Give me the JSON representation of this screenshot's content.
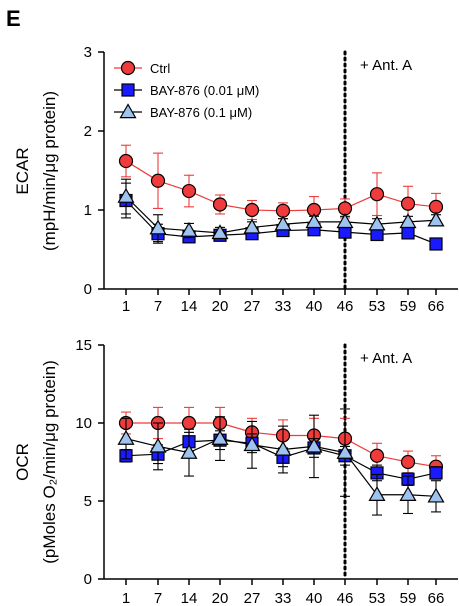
{
  "figure": {
    "panel_letter": "E"
  },
  "colors": {
    "ctrl": "#ef3b3b",
    "bay001": "#1a1aff",
    "bay01": "#9ec3ef",
    "axis": "#000000"
  },
  "chart_data": [
    {
      "type": "line",
      "xlabel": "",
      "ylabel_lines": [
        "ECAR",
        "(mpH/min/μg protein)"
      ],
      "categories": [
        "1",
        "7",
        "14",
        "20",
        "27",
        "33",
        "40",
        "46",
        "53",
        "59",
        "66"
      ],
      "ylim": [
        0,
        3
      ],
      "yticks": [
        "0",
        "1",
        "2",
        "3"
      ],
      "annotation": "+ Ant. A",
      "vline_at": "46",
      "legend": {
        "placement": "top-left"
      },
      "series": [
        {
          "name": "Ctrl",
          "marker": "circle",
          "color": "#ef3b3b",
          "values": [
            1.62,
            1.37,
            1.24,
            1.07,
            1.0,
            0.99,
            1.0,
            1.02,
            1.2,
            1.08,
            1.04
          ],
          "errors": [
            0.2,
            0.35,
            0.2,
            0.12,
            0.12,
            0.1,
            0.17,
            0.12,
            0.27,
            0.22,
            0.17
          ]
        },
        {
          "name": "BAY-876  (0.01 μM)",
          "marker": "square",
          "color": "#1a1aff",
          "values": [
            1.12,
            0.7,
            0.66,
            0.68,
            0.7,
            0.74,
            0.75,
            0.72,
            0.69,
            0.71,
            0.57
          ],
          "errors": [
            0.22,
            0.12,
            0.07,
            0.06,
            0.06,
            0.06,
            0.06,
            0.06,
            0.06,
            0.06,
            0.06
          ]
        },
        {
          "name": "BAY-876  (0.1 μM)",
          "marker": "triangle",
          "color": "#9ec3ef",
          "values": [
            1.17,
            0.77,
            0.74,
            0.71,
            0.78,
            0.82,
            0.85,
            0.85,
            0.82,
            0.85,
            0.87
          ],
          "errors": [
            0.22,
            0.17,
            0.09,
            0.07,
            0.07,
            0.07,
            0.07,
            0.07,
            0.07,
            0.07,
            0.07
          ]
        }
      ]
    },
    {
      "type": "line",
      "xlabel": "",
      "ylabel_lines": [
        "OCR",
        "(pMoles O₂/min/μg protein)"
      ],
      "categories": [
        "1",
        "7",
        "14",
        "20",
        "27",
        "33",
        "40",
        "46",
        "53",
        "59",
        "66"
      ],
      "ylim": [
        0,
        15
      ],
      "yticks": [
        "0",
        "5",
        "10",
        "15"
      ],
      "annotation": "+ Ant. A",
      "vline_at": "46",
      "series": [
        {
          "name": "Ctrl",
          "marker": "circle",
          "color": "#ef3b3b",
          "values": [
            10.0,
            10.0,
            10.0,
            10.0,
            9.4,
            9.2,
            9.2,
            9.0,
            7.9,
            7.5,
            7.2
          ],
          "errors": [
            0.7,
            1.0,
            1.0,
            1.0,
            0.9,
            1.0,
            1.1,
            1.3,
            0.8,
            0.7,
            0.7
          ]
        },
        {
          "name": "BAY-876  (0.01 μM)",
          "marker": "square",
          "color": "#1a1aff",
          "values": [
            7.9,
            8.0,
            8.8,
            8.9,
            8.7,
            7.8,
            8.4,
            7.9,
            6.8,
            6.4,
            6.8
          ],
          "errors": [
            0.4,
            0.6,
            0.6,
            0.6,
            0.6,
            0.6,
            0.6,
            0.6,
            0.5,
            0.4,
            0.4
          ]
        },
        {
          "name": "BAY-876  (0.1 μM)",
          "marker": "triangle",
          "color": "#9ec3ef",
          "values": [
            9.0,
            8.5,
            8.1,
            9.0,
            8.6,
            8.3,
            8.5,
            8.1,
            5.4,
            5.4,
            5.3
          ],
          "errors": [
            1.3,
            1.5,
            1.5,
            1.4,
            1.5,
            1.5,
            2.0,
            2.8,
            1.3,
            1.2,
            1.0
          ]
        }
      ]
    }
  ]
}
